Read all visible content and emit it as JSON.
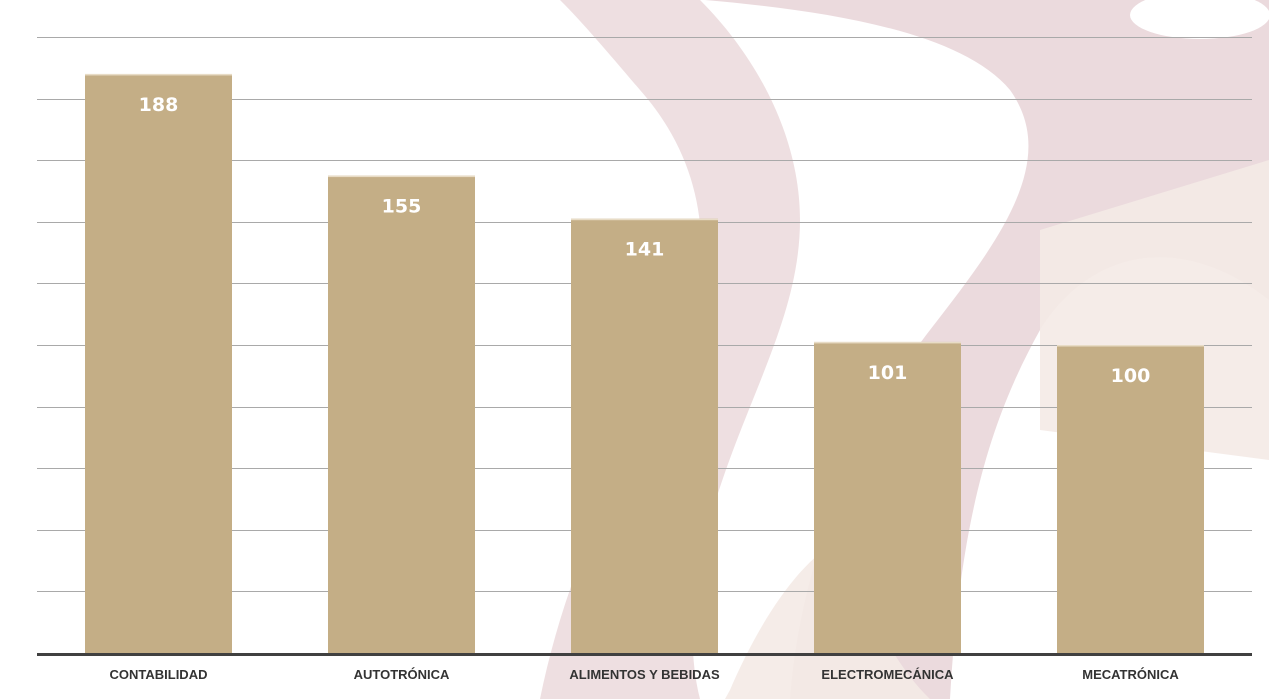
{
  "chart_data": {
    "type": "bar",
    "title": "",
    "xlabel": "",
    "ylabel": "",
    "categories": [
      "CONTABILIDAD",
      "AUTOTRÓNICA",
      "ALIMENTOS Y BEBIDAS",
      "ELECTROMECÁNICA",
      "MECATRÓNICA"
    ],
    "values": [
      188,
      155,
      141,
      101,
      100
    ],
    "data_labels": [
      "188",
      "155",
      "141",
      "101",
      "100"
    ],
    "ylim": [
      0,
      200
    ],
    "gridline_step": 20,
    "grid": true,
    "legend": "none"
  },
  "colors": {
    "bar": "#C4AE86",
    "bar_highlight": "#E8DCC6",
    "label_text": "#FFFFFF",
    "category_text": "#333333",
    "gridline": "#A9A9A9",
    "baseline": "#404040",
    "watermark": "#E8D4D7",
    "watermark_light": "#F4EAE6",
    "background": "#FFFFFF"
  }
}
